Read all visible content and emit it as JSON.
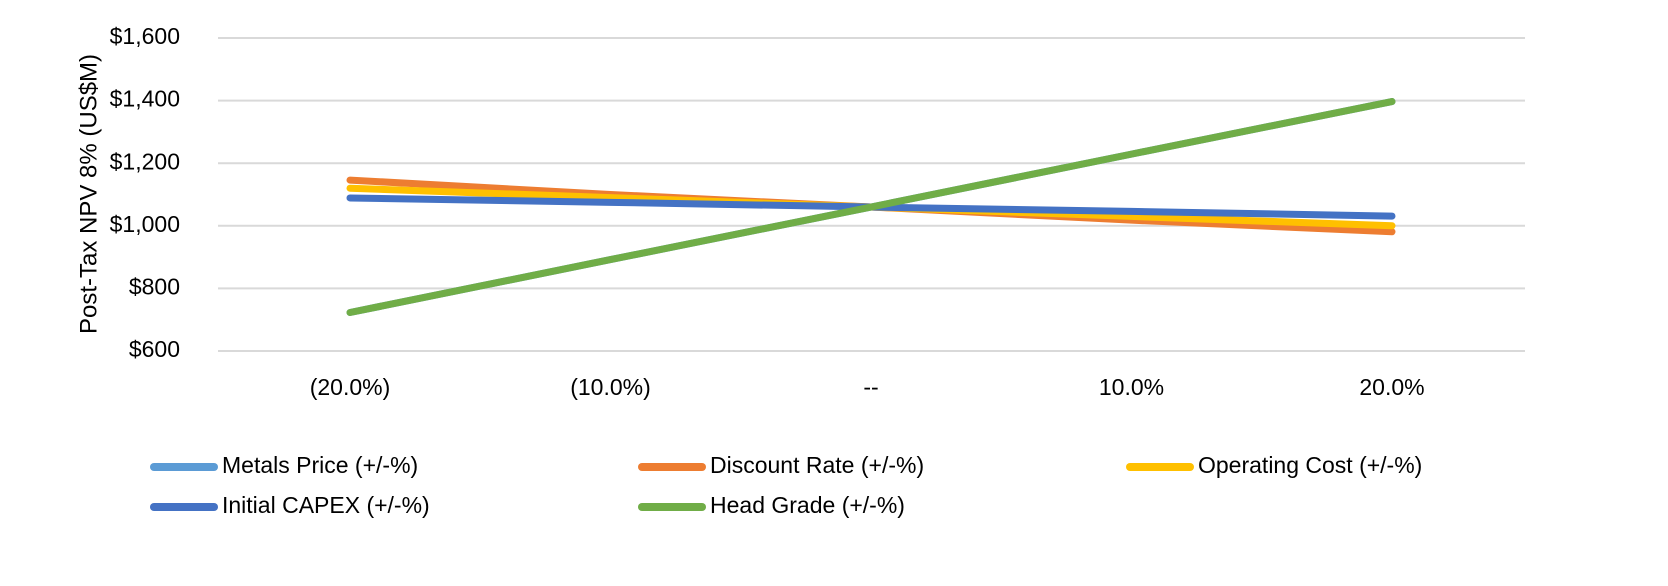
{
  "chart_data": {
    "type": "line",
    "title": "",
    "xlabel": "",
    "ylabel": "Post-Tax NPV 8% (US$M)",
    "categories": [
      "(20.0%)",
      "(10.0%)",
      "--",
      "10.0%",
      "20.0%"
    ],
    "ylim": [
      600,
      1600
    ],
    "y_ticks": [
      600,
      800,
      1000,
      1200,
      1400,
      1600
    ],
    "y_tick_labels": [
      "$600",
      "$800",
      "$1,000",
      "$1,200",
      "$1,400",
      "$1,600"
    ],
    "grid": true,
    "legend_position": "bottom",
    "series": [
      {
        "name": "Metals Price (+/-%)",
        "color": "#5B9BD5",
        "values": [
          723,
          892,
          1060,
          1229,
          1397
        ]
      },
      {
        "name": "Discount Rate (+/-%)",
        "color": "#ED7D31",
        "values": [
          1146,
          1100,
          1060,
          1018,
          981
        ]
      },
      {
        "name": "Operating Cost (+/-%)",
        "color": "#FFC000",
        "values": [
          1120,
          1090,
          1060,
          1030,
          1000
        ]
      },
      {
        "name": "Initial CAPEX (+/-%)",
        "color": "#4472C4",
        "values": [
          1089,
          1075,
          1060,
          1046,
          1031
        ]
      },
      {
        "name": "Head Grade (+/-%)",
        "color": "#70AD47",
        "values": [
          723,
          892,
          1060,
          1229,
          1397
        ]
      }
    ]
  }
}
